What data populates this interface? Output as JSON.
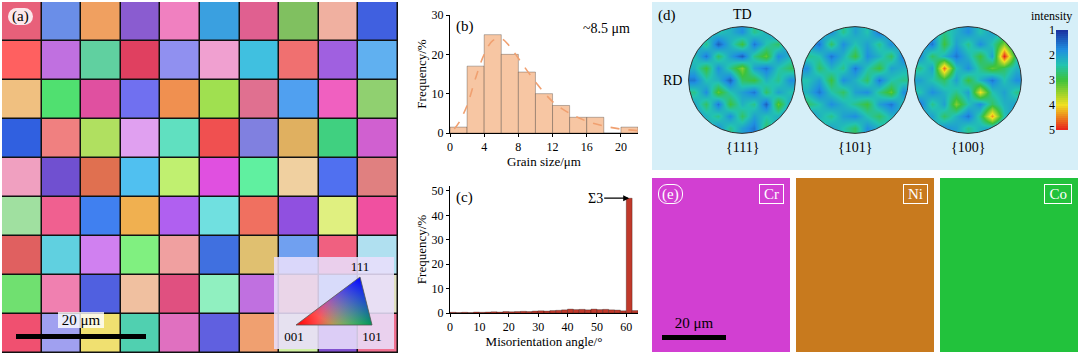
{
  "chart_data": [
    {
      "type": "image",
      "panel_label": "(a)",
      "scale_bar": "20 μm",
      "key": {
        "corners": [
          "001",
          "101",
          "111"
        ]
      },
      "cells": [
        [
          "#e8607a",
          "#6a8ee8",
          "#f0a060",
          "#8a5cd0",
          "#f080c0",
          "#3aa0e0",
          "#e06090",
          "#80c060",
          "#f0b0a0",
          "#4060e0"
        ],
        [
          "#ff6060",
          "#c070e0",
          "#60d0a0",
          "#e04060",
          "#9090f0",
          "#f0a0d0",
          "#40c0e0",
          "#f07070",
          "#a060e0",
          "#60b0f0"
        ],
        [
          "#f0c080",
          "#50e070",
          "#e050a0",
          "#7070f0",
          "#f09050",
          "#a0e050",
          "#e07090",
          "#50a0f0",
          "#f060c0",
          "#90d070"
        ],
        [
          "#3060e0",
          "#f08080",
          "#b0e060",
          "#e0a0f0",
          "#60e0c0",
          "#f05050",
          "#8080e0",
          "#e0b060",
          "#40d080",
          "#d060d0"
        ],
        [
          "#f0a0c0",
          "#7050d0",
          "#e07050",
          "#50c0f0",
          "#c0f070",
          "#e050e0",
          "#60f0a0",
          "#f0d0a0",
          "#5070f0",
          "#e08080"
        ],
        [
          "#a0e0a0",
          "#f06090",
          "#4080f0",
          "#f0b050",
          "#b060f0",
          "#70e0e0",
          "#f07060",
          "#9050e0",
          "#e0f080",
          "#f050a0"
        ],
        [
          "#e06060",
          "#60d0e0",
          "#d080f0",
          "#80f080",
          "#f0a0a0",
          "#4070e0",
          "#e0c070",
          "#70a0f0",
          "#f06080",
          "#b0e0f0"
        ],
        [
          "#70e070",
          "#f080b0",
          "#5060e0",
          "#f0c0a0",
          "#e05080",
          "#90f0c0",
          "#c070e0",
          "#f09060",
          "#60c0f0",
          "#e0e0c0"
        ],
        [
          "#f05070",
          "#a0a0f0",
          "#f0e070",
          "#50d0b0",
          "#e070c0",
          "#6060e0",
          "#f0a070",
          "#d0f0a0",
          "#8050d0",
          "#f07090"
        ]
      ]
    },
    {
      "type": "histogram",
      "panel_label": "(b)",
      "xlabel": "Grain size/μm",
      "ylabel": "Frequency/%",
      "bins": [
        0,
        2,
        4,
        6,
        8,
        10,
        12,
        14,
        16,
        18,
        20,
        22
      ],
      "values": [
        1.5,
        17,
        25,
        20,
        15.5,
        10,
        7,
        4,
        4,
        0,
        1.5
      ],
      "color": "#f7c6a3",
      "fit": {
        "x": [
          0.5,
          1,
          2,
          3,
          4,
          5,
          6,
          7,
          8,
          10,
          12,
          14,
          16,
          18,
          20,
          22
        ],
        "values": [
          1,
          2.5,
          7,
          14,
          20,
          23.5,
          24,
          22,
          19,
          13,
          8,
          5,
          3,
          1.8,
          1,
          0.6
        ],
        "color": "#f0a070",
        "line_style": "dashed"
      },
      "annotations": [
        {
          "text": "~8.5 μm"
        }
      ],
      "xlim": [
        0,
        22
      ],
      "xticks": [
        0,
        4,
        8,
        12,
        16,
        20
      ],
      "ylim": [
        0,
        30
      ],
      "yticks": [
        0,
        10,
        20,
        30
      ]
    },
    {
      "type": "histogram",
      "panel_label": "(c)",
      "xlabel": "Misorientation angle/°",
      "ylabel": "Frequency/%",
      "bins": [
        0,
        2,
        4,
        6,
        8,
        10,
        12,
        14,
        16,
        18,
        20,
        22,
        24,
        26,
        28,
        30,
        32,
        34,
        36,
        38,
        40,
        42,
        44,
        46,
        48,
        50,
        52,
        54,
        56,
        58,
        60,
        62,
        64
      ],
      "values": [
        0.3,
        0.2,
        0.3,
        0.2,
        0.4,
        0.3,
        0.4,
        0.5,
        0.4,
        0.6,
        0.5,
        0.6,
        0.7,
        0.6,
        0.8,
        0.9,
        0.8,
        1.0,
        1.1,
        1.3,
        1.6,
        1.4,
        1.5,
        1.3,
        1.6,
        1.4,
        1.5,
        1.3,
        1.2,
        0.9,
        47,
        1.0
      ],
      "color": "#c0392b",
      "annotations": [
        {
          "text": "Σ3",
          "x": 61,
          "y": 47
        }
      ],
      "xlim": [
        0,
        64
      ],
      "xticks": [
        0,
        10,
        20,
        30,
        40,
        50,
        60
      ],
      "ylim": [
        0,
        52
      ],
      "yticks": [
        0,
        10,
        20,
        30,
        40,
        50
      ]
    },
    {
      "type": "heatmap",
      "panel_label": "(d)",
      "directions": [
        "TD",
        "RD"
      ],
      "colorbar": {
        "label": "intensity",
        "range": [
          1,
          5
        ],
        "ticks": [
          1,
          2,
          3,
          4,
          5
        ]
      },
      "figures": [
        {
          "label": "{111}",
          "cells": [
            [
              null,
              2.0,
              2.4,
              2.2,
              1.8,
              2.6,
              2.2,
              1.6,
              null
            ],
            [
              1.8,
              2.6,
              1.4,
              2.2,
              3.0,
              1.6,
              2.4,
              2.8,
              1.6
            ],
            [
              2.4,
              1.6,
              2.8,
              2.0,
              1.4,
              2.6,
              3.2,
              1.8,
              2.2
            ],
            [
              2.2,
              3.0,
              1.8,
              2.6,
              3.4,
              2.0,
              1.6,
              2.4,
              2.8
            ],
            [
              1.6,
              2.4,
              2.2,
              1.4,
              2.8,
              3.0,
              2.2,
              2.6,
              1.8
            ],
            [
              2.6,
              1.8,
              3.2,
              2.4,
              2.0,
              1.6,
              2.8,
              2.0,
              2.4
            ],
            [
              2.0,
              2.8,
              1.6,
              3.0,
              2.2,
              2.6,
              1.4,
              3.2,
              2.0
            ],
            [
              1.8,
              2.2,
              2.6,
              1.8,
              2.8,
              2.0,
              2.4,
              2.2,
              1.6
            ],
            [
              null,
              2.4,
              1.8,
              2.6,
              2.0,
              1.6,
              2.8,
              2.0,
              null
            ]
          ]
        },
        {
          "label": "{101}",
          "cells": [
            [
              null,
              2.2,
              1.8,
              2.6,
              2.0,
              2.4,
              1.6,
              2.2,
              null
            ],
            [
              2.0,
              1.6,
              2.8,
              1.8,
              2.4,
              2.0,
              2.6,
              1.8,
              2.4
            ],
            [
              2.6,
              2.4,
              1.6,
              2.2,
              3.0,
              1.8,
              2.2,
              2.8,
              1.6
            ],
            [
              1.8,
              2.8,
              2.2,
              2.6,
              1.6,
              2.4,
              3.0,
              2.0,
              2.2
            ],
            [
              2.4,
              2.0,
              3.0,
              1.8,
              2.2,
              2.8,
              1.6,
              2.4,
              2.6
            ],
            [
              2.2,
              1.6,
              2.4,
              2.8,
              2.0,
              1.8,
              2.6,
              3.2,
              1.8
            ],
            [
              2.8,
              2.4,
              1.8,
              2.2,
              2.6,
              3.0,
              2.0,
              1.6,
              2.4
            ],
            [
              1.6,
              2.2,
              2.6,
              2.0,
              1.8,
              2.4,
              2.8,
              2.2,
              2.0
            ],
            [
              null,
              2.6,
              2.0,
              2.4,
              2.8,
              1.8,
              2.2,
              2.6,
              null
            ]
          ]
        },
        {
          "label": "{100}",
          "cells": [
            [
              null,
              2.0,
              2.6,
              2.2,
              1.8,
              2.4,
              2.0,
              2.2,
              null
            ],
            [
              2.2,
              1.6,
              3.0,
              2.0,
              2.6,
              1.8,
              2.4,
              3.4,
              2.0
            ],
            [
              1.8,
              2.8,
              2.2,
              1.6,
              2.2,
              3.0,
              2.0,
              5.0,
              2.6
            ],
            [
              2.6,
              2.0,
              4.6,
              2.4,
              1.8,
              2.6,
              3.2,
              2.8,
              2.2
            ],
            [
              2.0,
              2.4,
              2.8,
              2.0,
              3.0,
              2.2,
              1.6,
              2.4,
              1.8
            ],
            [
              2.4,
              1.8,
              2.2,
              2.6,
              2.0,
              4.0,
              2.4,
              2.0,
              2.6
            ],
            [
              1.6,
              2.6,
              2.0,
              3.4,
              2.4,
              1.8,
              2.8,
              2.2,
              2.0
            ],
            [
              2.2,
              2.0,
              2.8,
              2.2,
              1.6,
              2.6,
              4.4,
              2.4,
              1.8
            ],
            [
              null,
              2.4,
              1.8,
              2.0,
              2.6,
              2.2,
              2.0,
              1.6,
              null
            ]
          ]
        }
      ]
    },
    {
      "type": "map",
      "panel_label": "(e)",
      "scale_bar": "20 μm",
      "maps": [
        {
          "label": "Cr",
          "color": "#d23fd2"
        },
        {
          "label": "Ni",
          "color": "#c87a1e"
        },
        {
          "label": "Co",
          "color": "#22c23c"
        }
      ]
    }
  ]
}
